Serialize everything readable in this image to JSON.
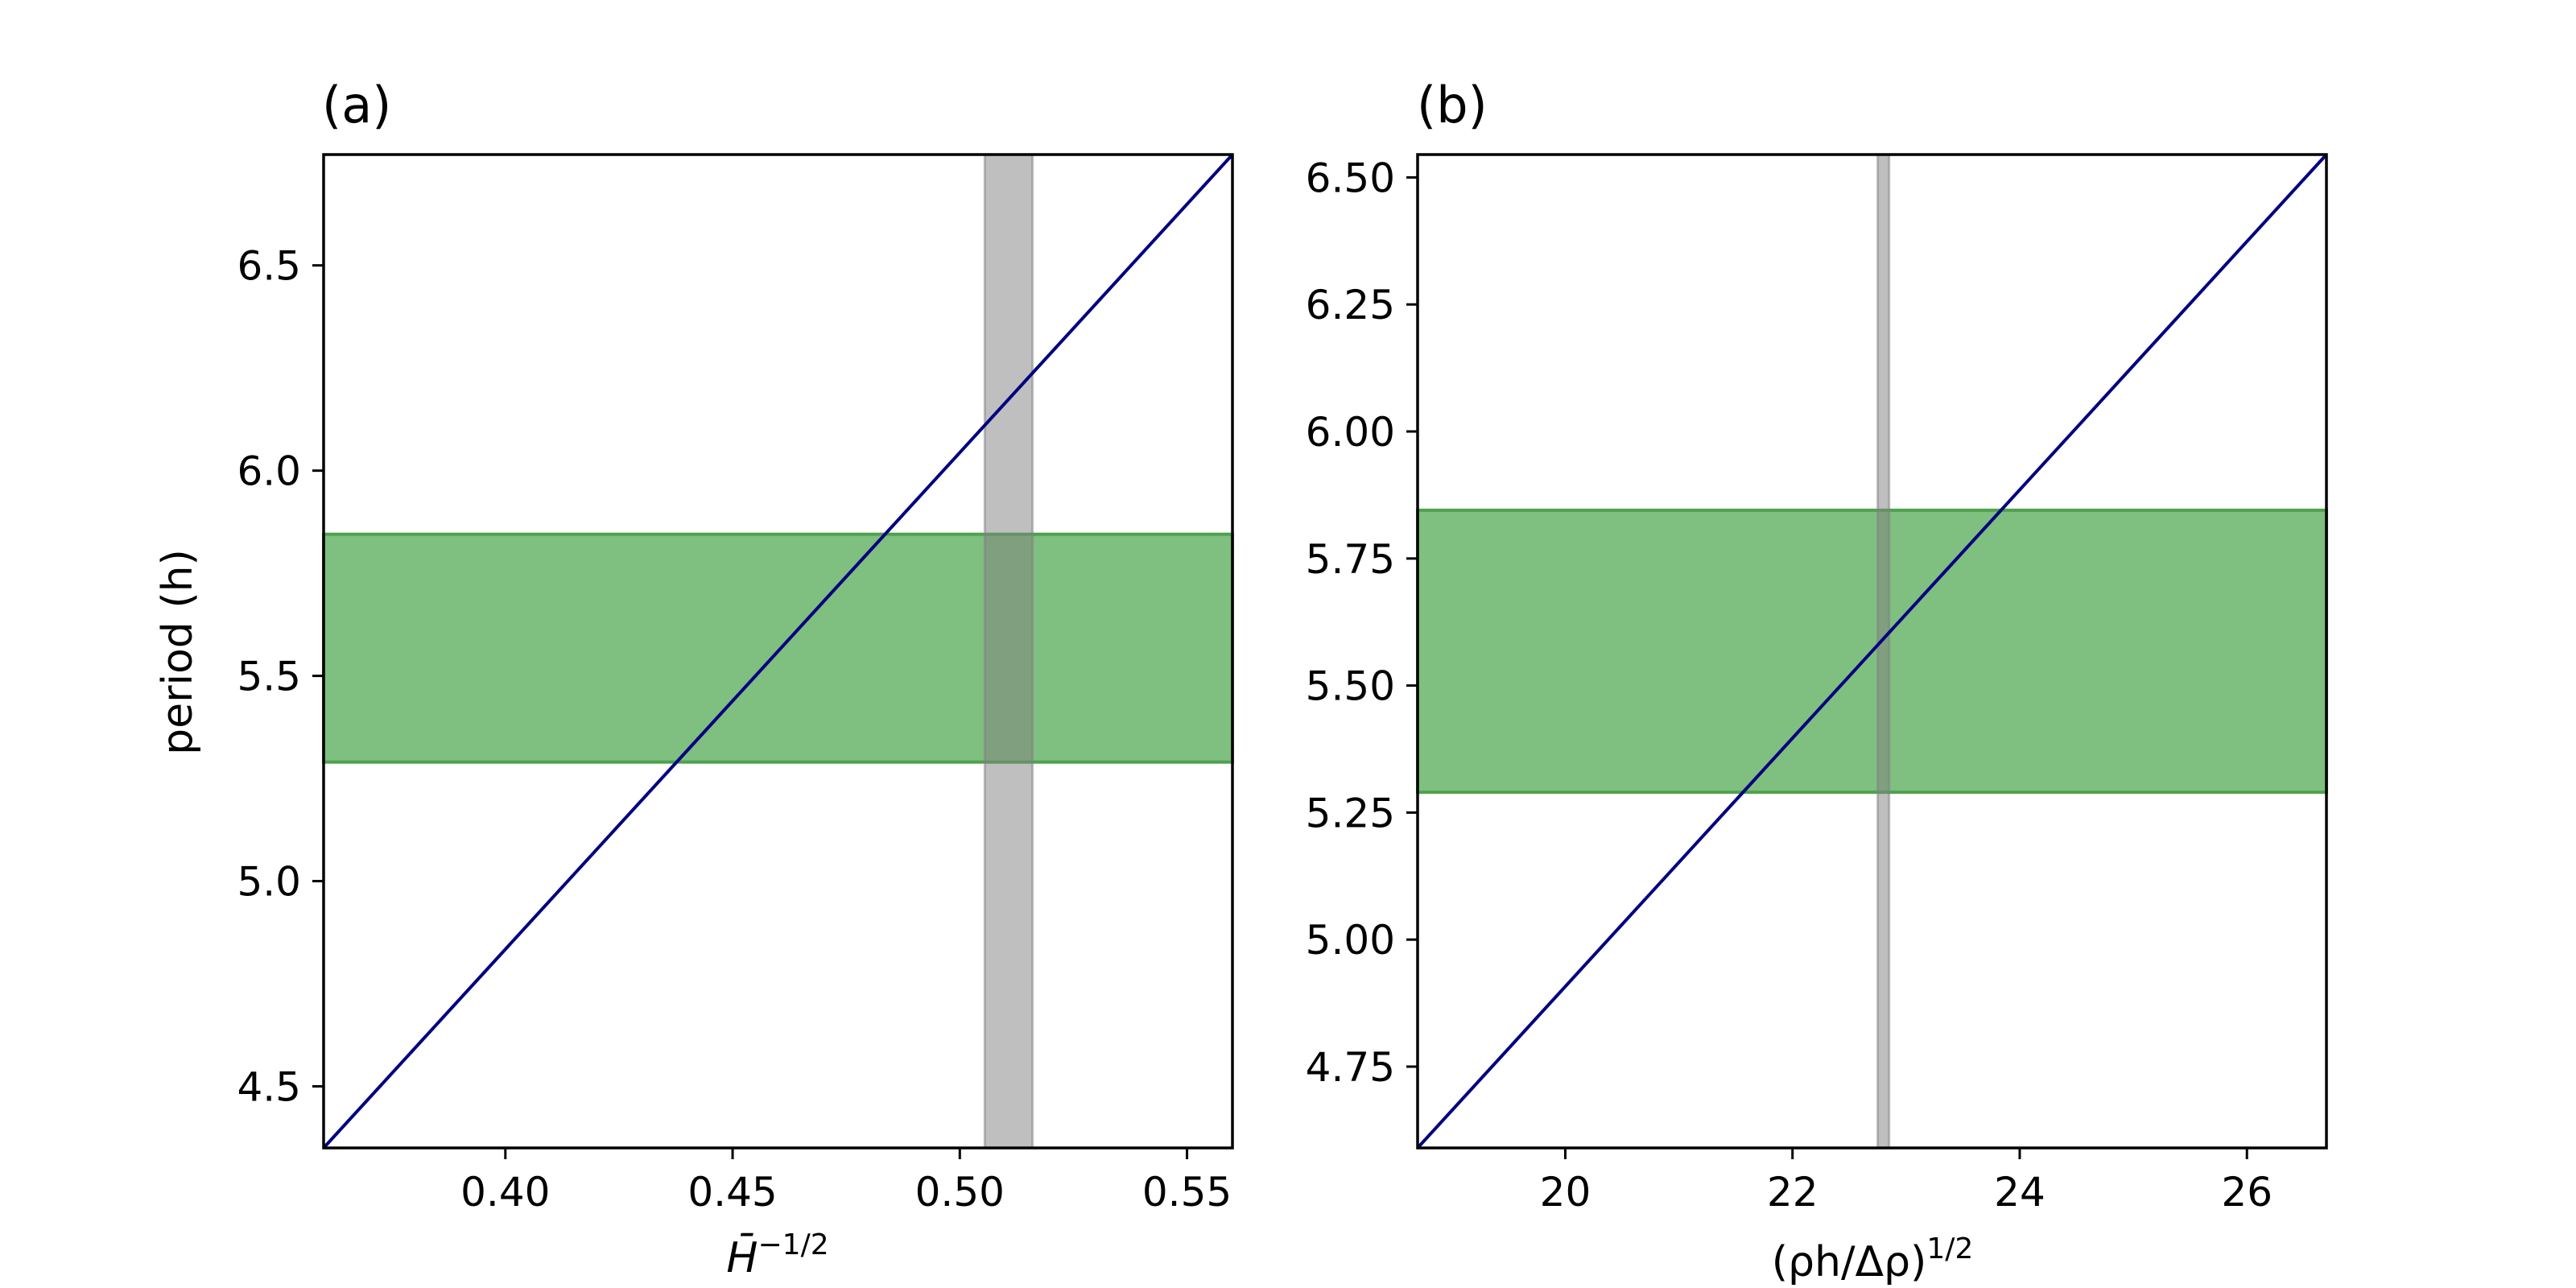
{
  "chart_data": [
    {
      "type": "line",
      "panel_label": "(a)",
      "xlabel": "H̄",
      "xlabel_sup": "−1/2",
      "ylabel": "period (h)",
      "xlim": [
        0.36,
        0.56
      ],
      "ylim": [
        4.35,
        6.77
      ],
      "xticks": [
        0.4,
        0.45,
        0.5,
        0.55
      ],
      "xtick_labels": [
        "0.40",
        "0.45",
        "0.50",
        "0.55"
      ],
      "yticks": [
        4.5,
        5.0,
        5.5,
        6.0,
        6.5
      ],
      "ytick_labels": [
        "4.5",
        "5.0",
        "5.5",
        "6.0",
        "6.5"
      ],
      "grid": false,
      "series": [
        {
          "x": [
            0.36,
            0.56
          ],
          "y": [
            4.35,
            6.77
          ]
        }
      ],
      "hspan": {
        "y0": 5.29,
        "y1": 5.845
      },
      "vspan": {
        "x0": 0.5055,
        "x1": 0.516
      }
    },
    {
      "type": "line",
      "panel_label": "(b)",
      "xlabel": "(ρh/Δρ)",
      "xlabel_sup": "1/2",
      "ylabel": "",
      "xlim": [
        18.7,
        26.7
      ],
      "ylim": [
        4.59,
        6.545
      ],
      "xticks": [
        20,
        22,
        24,
        26
      ],
      "xtick_labels": [
        "20",
        "22",
        "24",
        "26"
      ],
      "yticks": [
        4.75,
        5.0,
        5.25,
        5.5,
        5.75,
        6.0,
        6.25,
        6.5
      ],
      "ytick_labels": [
        "4.75",
        "5.00",
        "5.25",
        "5.50",
        "5.75",
        "6.00",
        "6.25",
        "6.50"
      ],
      "grid": false,
      "series": [
        {
          "x": [
            18.7,
            26.7
          ],
          "y": [
            4.59,
            6.545
          ]
        }
      ],
      "hspan": {
        "y0": 5.29,
        "y1": 5.845
      },
      "vspan": {
        "x0": 22.75,
        "x1": 22.85
      }
    }
  ],
  "colors": {
    "line": "#000080",
    "hspan_fill": "#7fbf7f",
    "hspan_edge": "#4ea24e",
    "vspan_fill": "#7f7f7f",
    "frame": "#000000"
  }
}
